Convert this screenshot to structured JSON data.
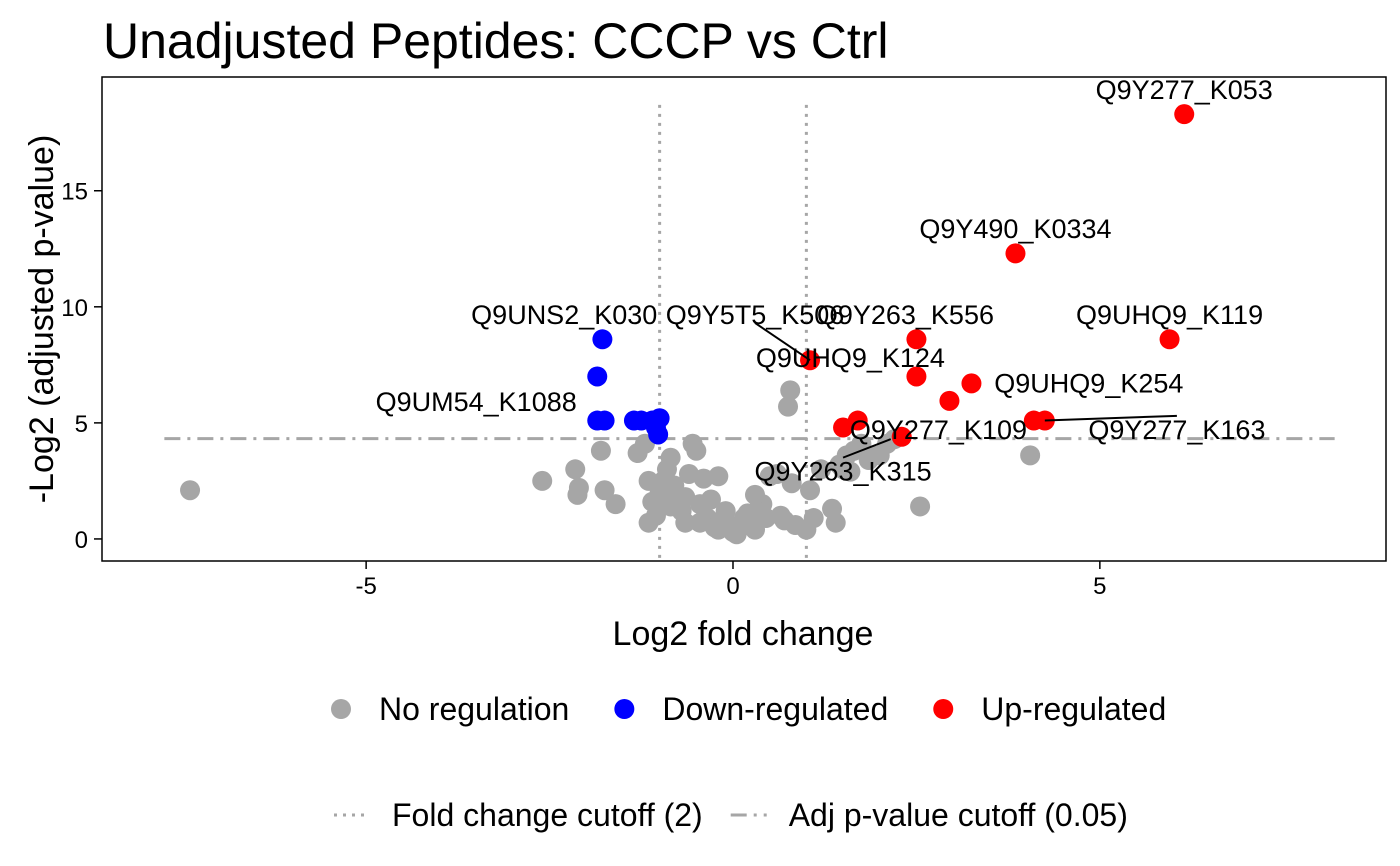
{
  "chart_data": {
    "type": "scatter",
    "title": "Unadjusted Peptides: CCCP vs Ctrl",
    "xlabel": "Log2 fold change",
    "ylabel": "-Log2 (adjusted p-value)",
    "xlim": [
      -8.6,
      8.9
    ],
    "ylim": [
      -0.95,
      19.9
    ],
    "xticks": [
      -5,
      0,
      5
    ],
    "yticks": [
      0,
      5,
      10,
      15
    ],
    "grid": false,
    "cutoffs": {
      "fold_change": [
        -1,
        1
      ],
      "p_value": 4.32,
      "fold_change_label": "Fold change cutoff (2)",
      "p_value_label": "Adj p-value cutoff (0.05)"
    },
    "series": [
      {
        "name": "No regulation",
        "color": "#a6a6a6",
        "points": [
          [
            -7.4,
            2.1
          ],
          [
            -2.6,
            2.5
          ],
          [
            -2.15,
            3.0
          ],
          [
            -2.1,
            2.2
          ],
          [
            -2.12,
            1.9
          ],
          [
            -1.75,
            2.1
          ],
          [
            -1.8,
            3.8
          ],
          [
            -1.6,
            1.5
          ],
          [
            -1.3,
            3.7
          ],
          [
            -1.2,
            4.1
          ],
          [
            -1.15,
            2.5
          ],
          [
            -1.1,
            1.6
          ],
          [
            -1.05,
            1.0
          ],
          [
            -1.0,
            2.0
          ],
          [
            -0.95,
            2.5
          ],
          [
            -0.9,
            3.0
          ],
          [
            -0.85,
            3.5
          ],
          [
            -0.8,
            2.3
          ],
          [
            -0.75,
            1.8
          ],
          [
            -0.7,
            1.2
          ],
          [
            -0.65,
            0.7
          ],
          [
            -0.6,
            2.8
          ],
          [
            -0.55,
            4.1
          ],
          [
            -0.5,
            3.8
          ],
          [
            -0.45,
            1.5
          ],
          [
            -0.4,
            2.6
          ],
          [
            -0.35,
            0.9
          ],
          [
            -0.3,
            1.7
          ],
          [
            -0.25,
            0.5
          ],
          [
            -0.2,
            0.4
          ],
          [
            -0.15,
            0.8
          ],
          [
            -0.1,
            1.2
          ],
          [
            -0.05,
            0.6
          ],
          [
            0.0,
            0.3
          ],
          [
            0.05,
            0.2
          ],
          [
            0.1,
            0.5
          ],
          [
            0.15,
            0.9
          ],
          [
            0.2,
            1.1
          ],
          [
            0.25,
            0.7
          ],
          [
            0.3,
            0.4
          ],
          [
            0.35,
            1.3
          ],
          [
            0.4,
            1.5
          ],
          [
            0.45,
            0.9
          ],
          [
            0.5,
            2.7
          ],
          [
            0.6,
            2.8
          ],
          [
            0.65,
            1.0
          ],
          [
            0.7,
            0.8
          ],
          [
            0.75,
            5.7
          ],
          [
            0.78,
            6.4
          ],
          [
            0.8,
            2.4
          ],
          [
            0.85,
            0.6
          ],
          [
            1.0,
            0.4
          ],
          [
            1.05,
            2.1
          ],
          [
            1.1,
            0.9
          ],
          [
            1.2,
            3.0
          ],
          [
            1.35,
            1.3
          ],
          [
            1.4,
            0.7
          ],
          [
            1.45,
            3.2
          ],
          [
            1.5,
            3.0
          ],
          [
            1.55,
            3.6
          ],
          [
            1.6,
            2.9
          ],
          [
            1.65,
            3.8
          ],
          [
            1.75,
            4.1
          ],
          [
            1.85,
            3.4
          ],
          [
            1.9,
            3.6
          ],
          [
            2.0,
            3.6
          ],
          [
            2.1,
            4.1
          ],
          [
            2.2,
            4.3
          ],
          [
            2.55,
            1.4
          ],
          [
            4.05,
            3.6
          ],
          [
            -0.65,
            1.8
          ],
          [
            -0.2,
            2.7
          ],
          [
            0.3,
            1.9
          ],
          [
            -0.85,
            1.4
          ],
          [
            -1.15,
            0.7
          ],
          [
            -0.45,
            0.7
          ]
        ]
      },
      {
        "name": "Down-regulated",
        "color": "#0000ff",
        "points": [
          [
            -1.78,
            8.6
          ],
          [
            -1.85,
            7.0
          ],
          [
            -1.85,
            5.1
          ],
          [
            -1.75,
            5.1
          ],
          [
            -1.35,
            5.1
          ],
          [
            -1.25,
            5.1
          ],
          [
            -1.1,
            5.1
          ],
          [
            -1.05,
            4.8
          ],
          [
            -1.02,
            4.5
          ],
          [
            -1.0,
            5.2
          ]
        ]
      },
      {
        "name": "Up-regulated",
        "color": "#ff0000",
        "points": [
          [
            6.15,
            18.3
          ],
          [
            3.85,
            12.3
          ],
          [
            5.95,
            8.6
          ],
          [
            2.5,
            8.6
          ],
          [
            1.05,
            7.7
          ],
          [
            2.5,
            7.0
          ],
          [
            3.25,
            6.7
          ],
          [
            2.95,
            5.95
          ],
          [
            4.1,
            5.1
          ],
          [
            4.25,
            5.1
          ],
          [
            1.7,
            5.1
          ],
          [
            1.5,
            4.8
          ],
          [
            2.3,
            4.4
          ]
        ]
      }
    ],
    "labels": [
      {
        "text": "Q9Y277_K053",
        "point": [
          6.15,
          18.3
        ],
        "tx": 6.15,
        "ty": 19.35,
        "leader": false
      },
      {
        "text": "Q9Y490_K0334",
        "point": [
          3.85,
          12.3
        ],
        "tx": 3.85,
        "ty": 13.35,
        "leader": false
      },
      {
        "text": "Q9UHQ9_K119",
        "point": [
          5.95,
          8.6
        ],
        "tx": 5.95,
        "ty": 9.65,
        "leader": false
      },
      {
        "text": "Q9Y263_K556",
        "point": [
          2.5,
          8.6
        ],
        "tx": 2.35,
        "ty": 9.65,
        "leader": false
      },
      {
        "text": "Q9UNS2_K030",
        "point": [
          -1.78,
          8.6
        ],
        "tx": -2.3,
        "ty": 9.65,
        "leader": false
      },
      {
        "text": "Q9Y5T5_K506",
        "point": [
          1.05,
          7.7
        ],
        "tx": 0.3,
        "ty": 9.65,
        "leader": true
      },
      {
        "text": "Q9UHQ9_K124",
        "point": [
          1.05,
          7.7
        ],
        "tx": 1.6,
        "ty": 7.8,
        "leader": false
      },
      {
        "text": "Q9UHQ9_K254",
        "point": [
          3.25,
          6.7
        ],
        "tx": 4.85,
        "ty": 6.7,
        "leader": false
      },
      {
        "text": "Q9UM54_K1088",
        "point": [
          -1.85,
          5.1
        ],
        "tx": -3.5,
        "ty": 5.9,
        "leader": false
      },
      {
        "text": "Q9Y277_K109",
        "point": [
          4.1,
          5.1
        ],
        "tx": 2.8,
        "ty": 4.7,
        "leader": false
      },
      {
        "text": "Q9Y277_K163",
        "point": [
          4.25,
          5.1
        ],
        "tx": 6.05,
        "ty": 4.7,
        "leader": true
      },
      {
        "text": "Q9Y263_K315",
        "point": [
          2.15,
          4.3
        ],
        "tx": 1.5,
        "ty": 2.9,
        "leader": true
      }
    ],
    "legend": {
      "placement": "bottom",
      "points": [
        {
          "label": "No regulation",
          "color": "#a6a6a6"
        },
        {
          "label": "Down-regulated",
          "color": "#0000ff"
        },
        {
          "label": "Up-regulated",
          "color": "#ff0000"
        }
      ],
      "lines": [
        {
          "label": "Fold change cutoff (2)",
          "style": "dotted"
        },
        {
          "label": "Adj p-value cutoff (0.05)",
          "style": "dashdot"
        }
      ]
    }
  }
}
